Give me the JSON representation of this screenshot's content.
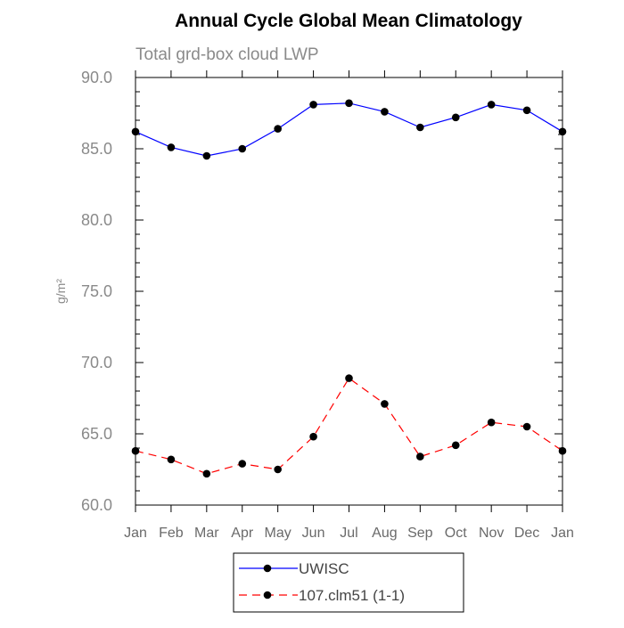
{
  "chart_data": {
    "type": "line",
    "title": "Annual Cycle Global Mean Climatology",
    "subtitle": "Total grd-box cloud LWP",
    "xlabel": "",
    "ylabel": "g/m²",
    "ylim": [
      60.0,
      90.0
    ],
    "yticks": [
      "60.0",
      "65.0",
      "70.0",
      "75.0",
      "80.0",
      "85.0",
      "90.0"
    ],
    "categories": [
      "Jan",
      "Feb",
      "Mar",
      "Apr",
      "May",
      "Jun",
      "Jul",
      "Aug",
      "Sep",
      "Oct",
      "Nov",
      "Dec",
      "Jan"
    ],
    "series": [
      {
        "name": "UWISC",
        "color": "#0000ff",
        "dash": "solid",
        "values": [
          86.2,
          85.1,
          84.5,
          85.0,
          86.4,
          88.1,
          88.2,
          87.6,
          86.5,
          87.2,
          88.1,
          87.7,
          86.2
        ]
      },
      {
        "name": "107.clm51 (1-1)",
        "color": "#ff0000",
        "dash": "dashed",
        "values": [
          63.8,
          63.2,
          62.2,
          62.9,
          62.5,
          64.8,
          68.9,
          67.1,
          63.4,
          64.2,
          65.8,
          65.5,
          63.8
        ]
      }
    ],
    "grid": false,
    "legend": "bottom"
  }
}
